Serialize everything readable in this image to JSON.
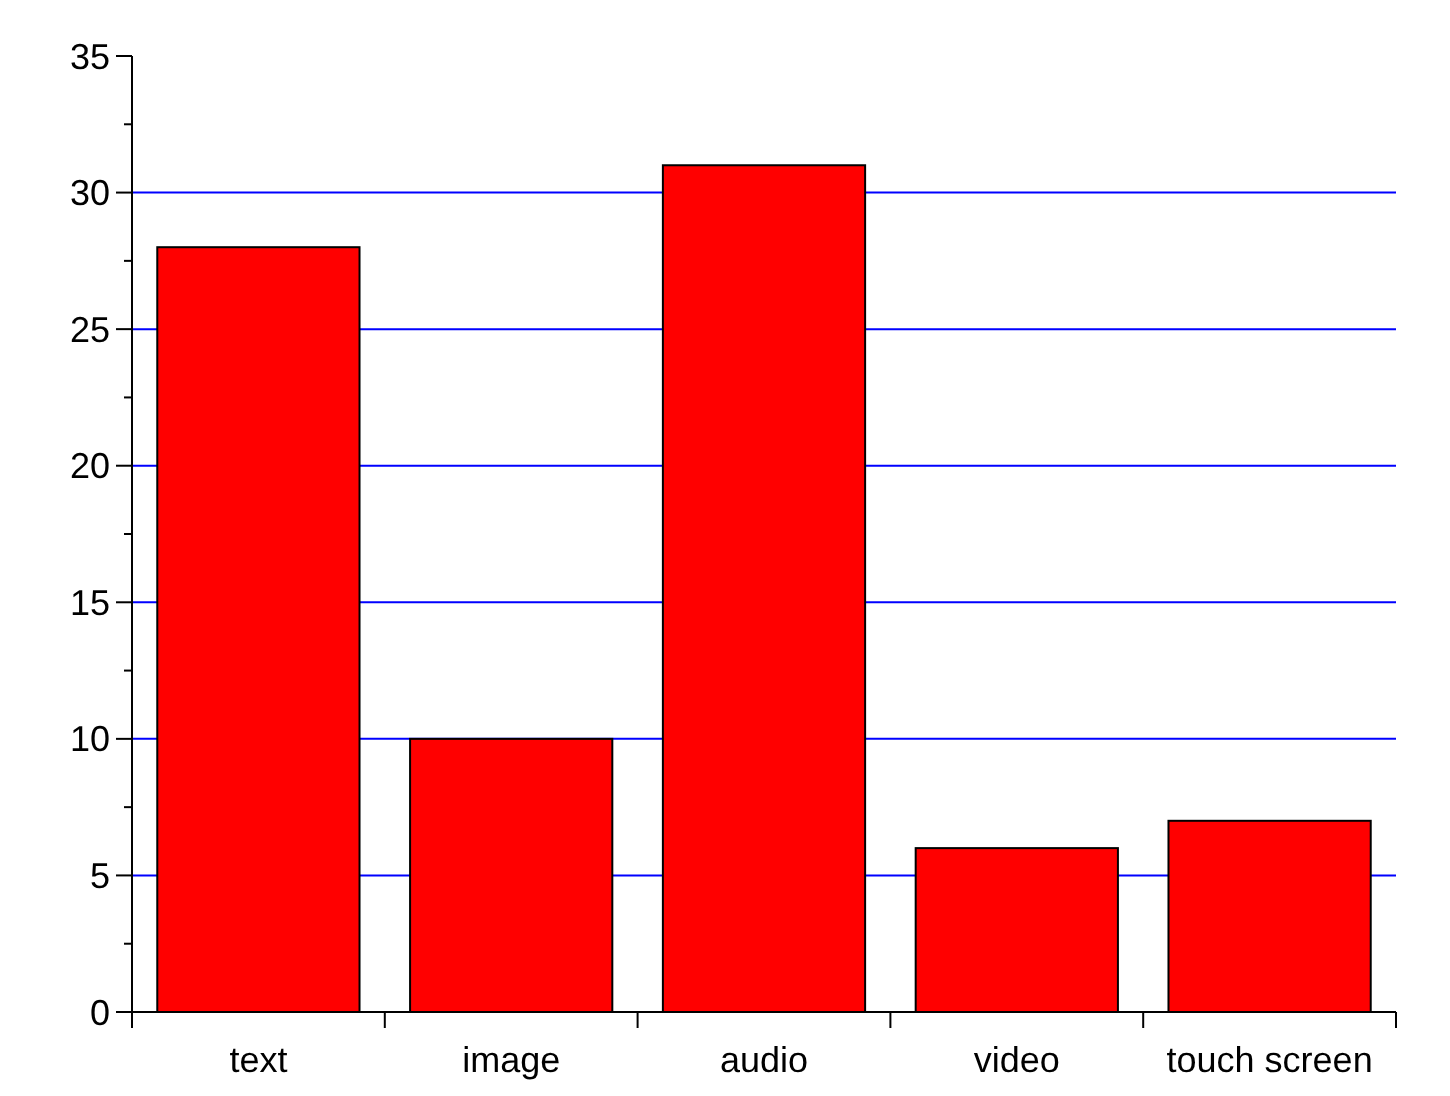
{
  "chart_data": {
    "type": "bar",
    "categories": [
      "text",
      "image",
      "audio",
      "video",
      "touch screen"
    ],
    "values": [
      28,
      10,
      31,
      6,
      7
    ],
    "color": "#ff0000",
    "ylim": [
      0,
      35
    ],
    "yticks": [
      0,
      {
        "value": 2.5,
        "label": null
      },
      5,
      {
        "value": 7.5,
        "label": null
      },
      10,
      {
        "value": 12.5,
        "label": null
      },
      15,
      {
        "value": 17.5,
        "label": null
      },
      20,
      {
        "value": 22.5,
        "label": null
      },
      25,
      {
        "value": 27.5,
        "label": null
      },
      30,
      {
        "value": 32.5,
        "label": null
      },
      35
    ],
    "grid": "y"
  }
}
